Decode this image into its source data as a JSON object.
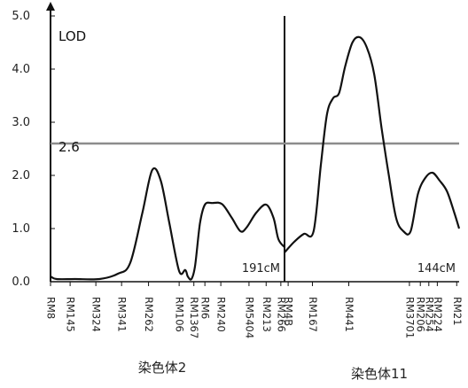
{
  "chart_data": {
    "type": "line",
    "ylabel": "LOD",
    "ylim": [
      0,
      5
    ],
    "yticks": [
      "0.0",
      "1.0",
      "2.0",
      "3.0",
      "4.0",
      "5.0"
    ],
    "threshold": {
      "value": 2.6,
      "label": "2.6",
      "color": "#8c8c8c"
    },
    "grid": false,
    "panels": [
      {
        "chromosome_label": "染色体2",
        "length_label": "191cM",
        "x_range": [
          0,
          191
        ],
        "markers": [
          {
            "name": "RM8",
            "pos": 0
          },
          {
            "name": "RM145",
            "pos": 16
          },
          {
            "name": "RM324",
            "pos": 37
          },
          {
            "name": "RM341",
            "pos": 58
          },
          {
            "name": "RM262",
            "pos": 80
          },
          {
            "name": "RM106",
            "pos": 105
          },
          {
            "name": "RM1367",
            "pos": 117
          },
          {
            "name": "RM6",
            "pos": 126
          },
          {
            "name": "RM240",
            "pos": 139
          },
          {
            "name": "RM5404",
            "pos": 162
          },
          {
            "name": "RM213",
            "pos": 176
          },
          {
            "name": "RM266",
            "pos": 188
          }
        ],
        "series": {
          "x": [
            0,
            5,
            20,
            40,
            55,
            65,
            75,
            83,
            90,
            97,
            105,
            110,
            112,
            115,
            118,
            122,
            126,
            132,
            140,
            148,
            155,
            160,
            168,
            176,
            182,
            186,
            191
          ],
          "y": [
            0.1,
            0.05,
            0.05,
            0.05,
            0.15,
            0.35,
            1.3,
            2.1,
            1.9,
            1.1,
            0.2,
            0.22,
            0.1,
            0.05,
            0.3,
            1.1,
            1.45,
            1.48,
            1.46,
            1.2,
            0.95,
            1.02,
            1.3,
            1.45,
            1.2,
            0.8,
            0.65
          ]
        }
      },
      {
        "chromosome_label": "染色体11",
        "length_label": "144cM",
        "x_range": [
          0,
          144
        ],
        "markers": [
          {
            "name": "RM4B",
            "pos": 3
          },
          {
            "name": "RM167",
            "pos": 23
          },
          {
            "name": "RM441",
            "pos": 53
          },
          {
            "name": "RM3701",
            "pos": 103
          },
          {
            "name": "RM206",
            "pos": 112
          },
          {
            "name": "RM254",
            "pos": 119
          },
          {
            "name": "RM224",
            "pos": 126
          },
          {
            "name": "RM21",
            "pos": 142
          }
        ],
        "series": {
          "x": [
            0,
            8,
            16,
            24,
            30,
            35,
            40,
            45,
            50,
            56,
            62,
            68,
            74,
            80,
            86,
            92,
            98,
            104,
            110,
            116,
            122,
            128,
            134,
            140,
            144
          ],
          "y": [
            0.55,
            0.75,
            0.9,
            0.95,
            2.2,
            3.15,
            3.45,
            3.55,
            4.05,
            4.5,
            4.6,
            4.4,
            3.9,
            2.9,
            2.0,
            1.2,
            0.95,
            0.95,
            1.65,
            1.95,
            2.05,
            1.9,
            1.7,
            1.3,
            1.0
          ]
        }
      }
    ]
  }
}
